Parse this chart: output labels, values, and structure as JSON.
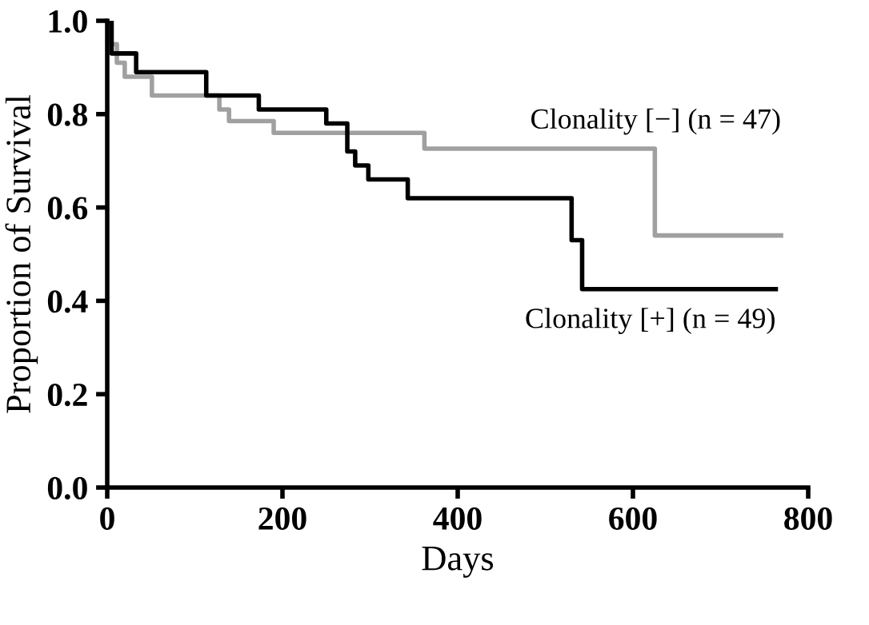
{
  "chart_data": {
    "type": "step",
    "xlabel": "Days",
    "ylabel": "Proportion of Survival",
    "xlim": [
      0,
      800
    ],
    "xticks": [
      0,
      200,
      400,
      600,
      800
    ],
    "ylim": [
      0,
      1.0
    ],
    "yticks": [
      {
        "value": 0,
        "label": "0.0"
      },
      {
        "value": 0.2,
        "label": "0.2"
      },
      {
        "value": 0.4,
        "label": "0.4"
      },
      {
        "value": 0.6,
        "label": "0.6"
      },
      {
        "value": 0.8,
        "label": "0.8"
      },
      {
        "value": 1.0,
        "label": "1.0"
      }
    ],
    "grid": false,
    "legend": false,
    "marker": "none",
    "line_style": "solid",
    "series": [
      {
        "name": "Clonality [−] (n = 47)",
        "color": "#a0a0a0",
        "x": [
          0,
          3,
          11,
          20,
          51,
          128,
          139,
          190,
          362,
          625,
          769
        ],
        "values": [
          1.0,
          0.95,
          0.91,
          0.88,
          0.84,
          0.81,
          0.785,
          0.76,
          0.726,
          0.54,
          0.54
        ]
      },
      {
        "name": "Clonality [+] (n = 49)",
        "color": "#000000",
        "x": [
          0,
          5,
          33,
          113,
          173,
          250,
          274,
          283,
          298,
          343,
          530,
          542,
          763
        ],
        "values": [
          1.0,
          0.93,
          0.89,
          0.84,
          0.81,
          0.78,
          0.72,
          0.69,
          0.66,
          0.62,
          0.53,
          0.425,
          0.425
        ]
      }
    ]
  }
}
